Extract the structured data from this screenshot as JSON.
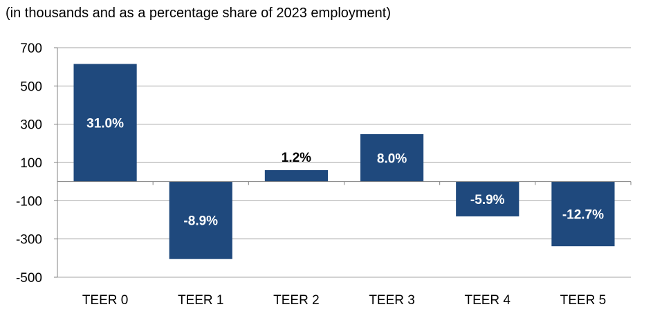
{
  "chart_data": {
    "type": "bar",
    "subtitle": "(in thousands and as a percentage share of 2023 employment)",
    "categories": [
      "TEER 0",
      "TEER 1",
      "TEER 2",
      "TEER 3",
      "TEER 4",
      "TEER 5"
    ],
    "values": [
      615,
      -405,
      60,
      248,
      -182,
      -338
    ],
    "data_labels": [
      "31.0%",
      "-8.9%",
      "1.2%",
      "8.0%",
      "-5.9%",
      "-12.7%"
    ],
    "label_outside": [
      false,
      false,
      true,
      false,
      false,
      false
    ],
    "ylim": [
      -500,
      700
    ],
    "yticks": [
      700,
      500,
      300,
      100,
      -100,
      -300,
      -500
    ],
    "ytick_labels": [
      "700",
      "500",
      "300",
      "100",
      "-100",
      "-300",
      "-500"
    ],
    "grid": true,
    "colors": {
      "bar": "#1f497d",
      "label_inside": "#ffffff",
      "label_outside": "#000000",
      "grid": "#a6a6a6"
    }
  }
}
